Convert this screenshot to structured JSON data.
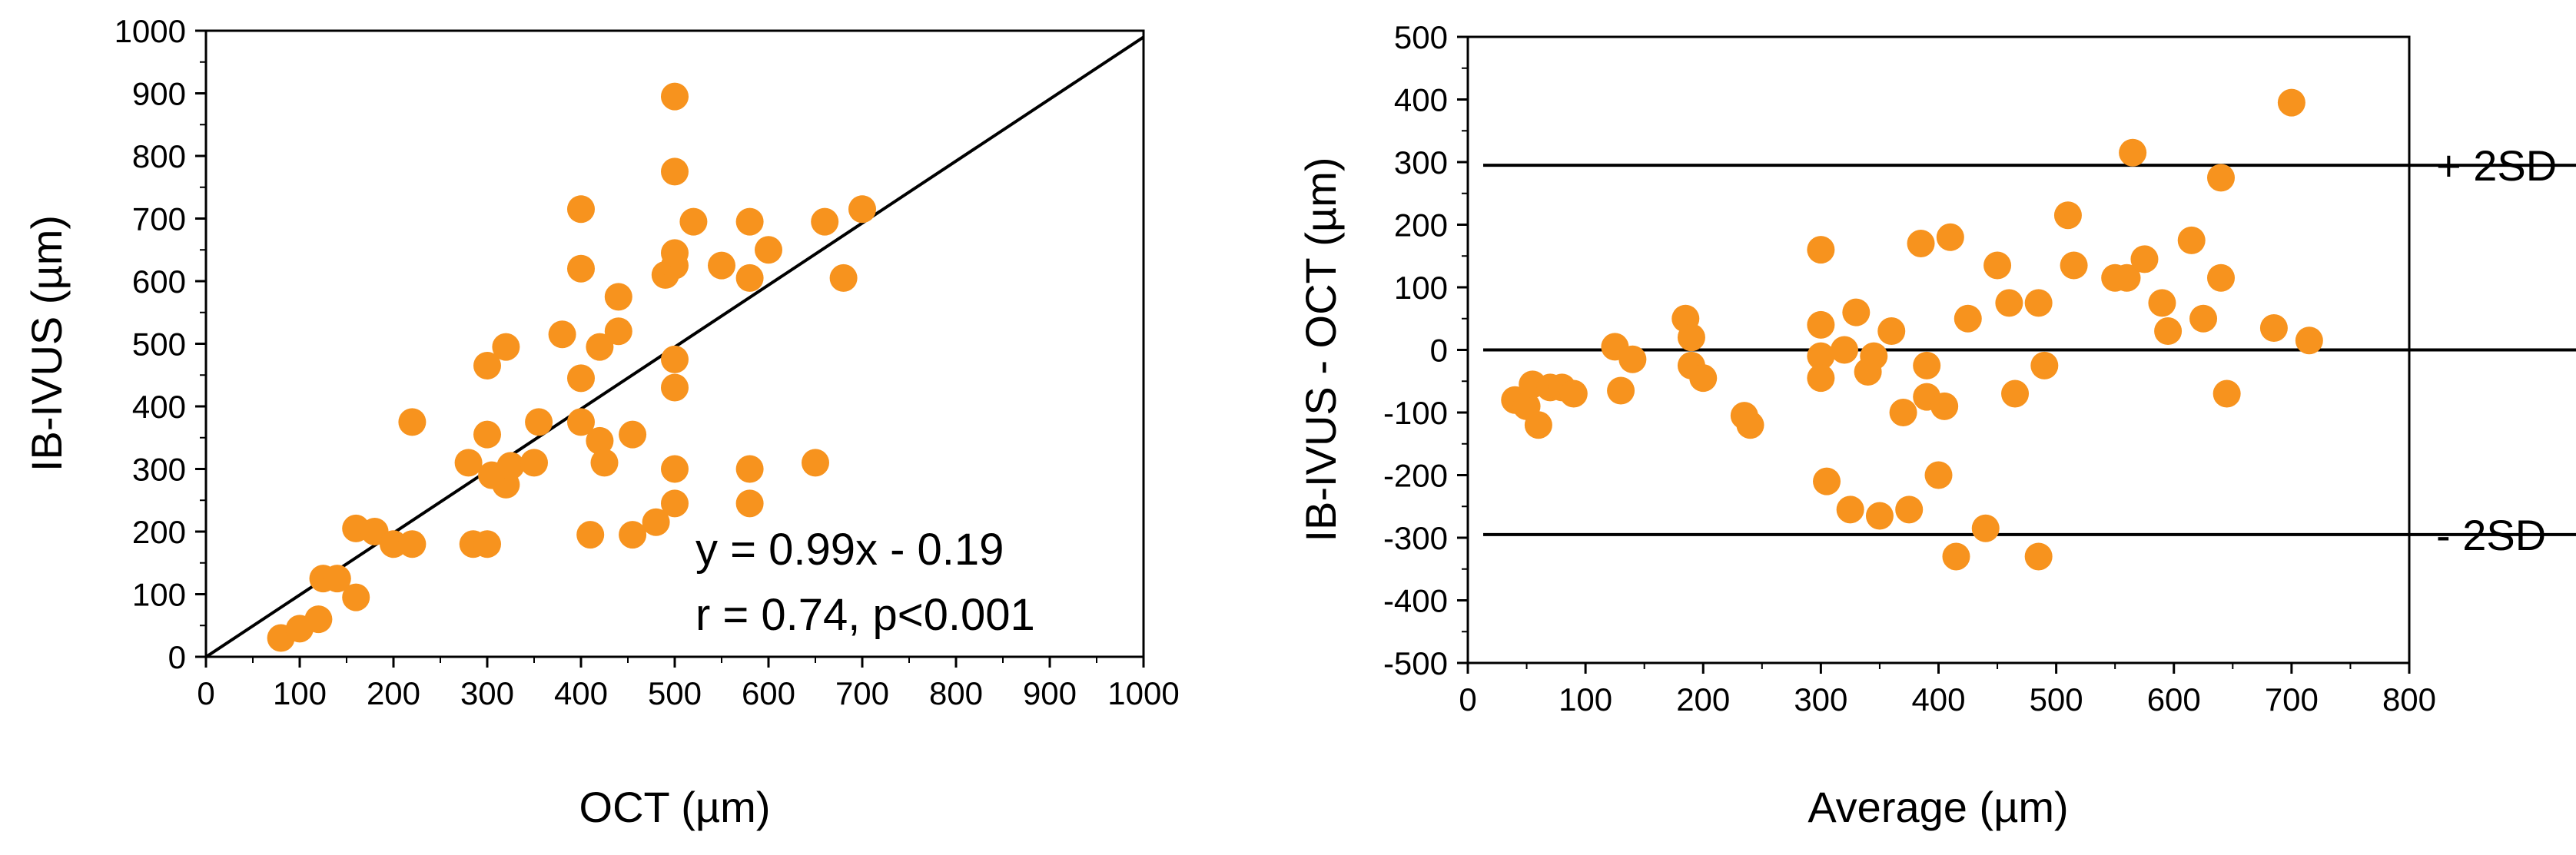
{
  "chart_data": [
    {
      "type": "scatter",
      "title": "",
      "xlabel": "OCT (µm)",
      "ylabel": "IB-IVUS (µm)",
      "xlim": [
        0,
        1000
      ],
      "ylim": [
        0,
        1000
      ],
      "xticks": [
        "0",
        "100",
        "200",
        "300",
        "400",
        "500",
        "600",
        "700",
        "800",
        "900",
        "1000"
      ],
      "yticks": [
        "0",
        "100",
        "200",
        "300",
        "400",
        "500",
        "600",
        "700",
        "800",
        "900",
        "1000"
      ],
      "grid": false,
      "marker_color": "#F7931E",
      "regression_line": {
        "slope": 0.99,
        "intercept": -0.19
      },
      "annotations": [
        "y = 0.99x - 0.19",
        "r = 0.74, p<0.001"
      ],
      "points": [
        [
          80,
          30
        ],
        [
          100,
          45
        ],
        [
          120,
          60
        ],
        [
          125,
          125
        ],
        [
          140,
          125
        ],
        [
          160,
          95
        ],
        [
          160,
          205
        ],
        [
          180,
          200
        ],
        [
          200,
          180
        ],
        [
          220,
          180
        ],
        [
          220,
          375
        ],
        [
          280,
          310
        ],
        [
          285,
          180
        ],
        [
          300,
          180
        ],
        [
          300,
          355
        ],
        [
          300,
          465
        ],
        [
          305,
          290
        ],
        [
          320,
          275
        ],
        [
          320,
          495
        ],
        [
          325,
          305
        ],
        [
          350,
          310
        ],
        [
          355,
          375
        ],
        [
          380,
          515
        ],
        [
          400,
          375
        ],
        [
          400,
          445
        ],
        [
          400,
          620
        ],
        [
          400,
          715
        ],
        [
          410,
          195
        ],
        [
          420,
          495
        ],
        [
          420,
          345
        ],
        [
          425,
          310
        ],
        [
          440,
          520
        ],
        [
          440,
          575
        ],
        [
          455,
          195
        ],
        [
          455,
          355
        ],
        [
          480,
          215
        ],
        [
          490,
          610
        ],
        [
          500,
          245
        ],
        [
          500,
          300
        ],
        [
          500,
          430
        ],
        [
          500,
          475
        ],
        [
          500,
          625
        ],
        [
          500,
          645
        ],
        [
          500,
          775
        ],
        [
          500,
          895
        ],
        [
          520,
          695
        ],
        [
          550,
          625
        ],
        [
          580,
          695
        ],
        [
          580,
          605
        ],
        [
          580,
          300
        ],
        [
          580,
          245
        ],
        [
          600,
          650
        ],
        [
          650,
          310
        ],
        [
          660,
          695
        ],
        [
          680,
          605
        ],
        [
          700,
          715
        ]
      ]
    },
    {
      "type": "scatter",
      "title": "",
      "xlabel": "Average (µm)",
      "ylabel": "IB-IVUS - OCT (µm)",
      "xlim": [
        0,
        800
      ],
      "ylim": [
        -500,
        500
      ],
      "xticks": [
        "0",
        "100",
        "200",
        "300",
        "400",
        "500",
        "600",
        "700",
        "800"
      ],
      "yticks": [
        "-500",
        "-400",
        "-300",
        "-200",
        "-100",
        "0",
        "100",
        "200",
        "300",
        "400",
        "500"
      ],
      "grid": false,
      "marker_color": "#F7931E",
      "reference_lines": [
        {
          "label": "+ 2SD",
          "y": 295
        },
        {
          "label": "",
          "y": 0
        },
        {
          "label": "- 2SD",
          "y": -295
        }
      ],
      "points": [
        [
          40,
          -80
        ],
        [
          50,
          -90
        ],
        [
          55,
          -55
        ],
        [
          60,
          -120
        ],
        [
          70,
          -60
        ],
        [
          80,
          -60
        ],
        [
          90,
          -70
        ],
        [
          125,
          5
        ],
        [
          130,
          -65
        ],
        [
          140,
          -15
        ],
        [
          185,
          50
        ],
        [
          190,
          20
        ],
        [
          190,
          -25
        ],
        [
          200,
          -45
        ],
        [
          235,
          -105
        ],
        [
          240,
          -120
        ],
        [
          300,
          160
        ],
        [
          300,
          40
        ],
        [
          300,
          -10
        ],
        [
          300,
          -45
        ],
        [
          305,
          -210
        ],
        [
          320,
          0
        ],
        [
          325,
          -255
        ],
        [
          330,
          60
        ],
        [
          340,
          -35
        ],
        [
          345,
          -10
        ],
        [
          350,
          -265
        ],
        [
          360,
          30
        ],
        [
          370,
          -100
        ],
        [
          375,
          -255
        ],
        [
          385,
          170
        ],
        [
          390,
          -75
        ],
        [
          390,
          -25
        ],
        [
          400,
          -200
        ],
        [
          405,
          -90
        ],
        [
          410,
          180
        ],
        [
          415,
          -330
        ],
        [
          425,
          50
        ],
        [
          440,
          -285
        ],
        [
          450,
          135
        ],
        [
          460,
          75
        ],
        [
          465,
          -70
        ],
        [
          485,
          75
        ],
        [
          485,
          -330
        ],
        [
          490,
          -25
        ],
        [
          510,
          215
        ],
        [
          515,
          135
        ],
        [
          550,
          115
        ],
        [
          560,
          115
        ],
        [
          565,
          315
        ],
        [
          575,
          145
        ],
        [
          590,
          75
        ],
        [
          595,
          30
        ],
        [
          615,
          175
        ],
        [
          625,
          50
        ],
        [
          640,
          275
        ],
        [
          640,
          115
        ],
        [
          645,
          -70
        ],
        [
          685,
          35
        ],
        [
          700,
          395
        ],
        [
          715,
          15
        ]
      ]
    }
  ]
}
